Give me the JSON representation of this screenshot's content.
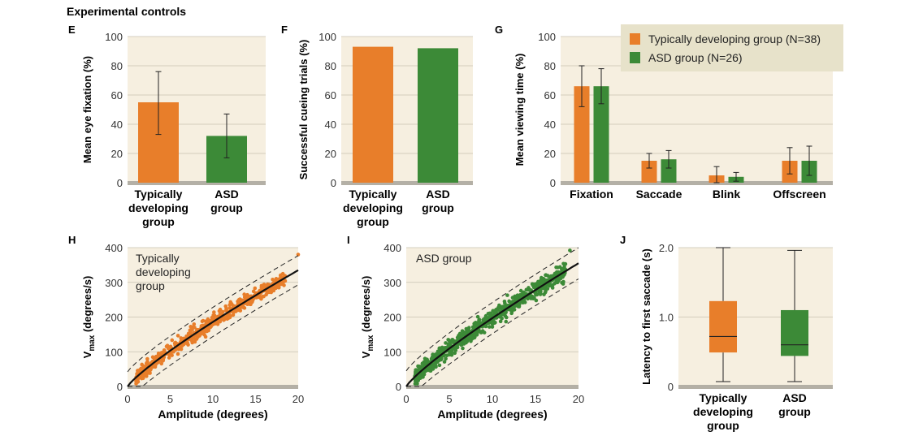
{
  "figure_title": "Experimental controls",
  "colors": {
    "td": "#e87e2a",
    "asd": "#3c8a37",
    "plot_bg": "#f6efe0",
    "legend_bg": "#e7e2ca",
    "grid": "#c8c2b2",
    "base": "#b4b0a6",
    "fit": "#111111"
  },
  "chart_data": [
    {
      "panel": "E",
      "type": "bar",
      "ylabel": "Mean eye fixation (%)",
      "ylim": [
        0,
        100
      ],
      "yticks": [
        "0",
        "20",
        "40",
        "60",
        "80",
        "100"
      ],
      "categories": [
        [
          "Typically",
          "developing",
          "group"
        ],
        [
          "ASD",
          "group"
        ]
      ],
      "values": [
        55,
        32
      ],
      "errors": [
        [
          33,
          76
        ],
        [
          17,
          47
        ]
      ]
    },
    {
      "panel": "F",
      "type": "bar",
      "ylabel": "Successful cueing trials (%)",
      "ylim": [
        0,
        100
      ],
      "yticks": [
        "0",
        "20",
        "40",
        "60",
        "80",
        "100"
      ],
      "categories": [
        [
          "Typically",
          "developing",
          "group"
        ],
        [
          "ASD",
          "group"
        ]
      ],
      "values": [
        93,
        92
      ]
    },
    {
      "panel": "G",
      "type": "bar",
      "ylabel": "Mean viewing time (%)",
      "ylim": [
        0,
        100
      ],
      "yticks": [
        "0",
        "20",
        "40",
        "60",
        "80",
        "100"
      ],
      "categories": [
        "Fixation",
        "Saccade",
        "Blink",
        "Offscreen"
      ],
      "series": [
        {
          "name": "Typically developing group (N=38)",
          "values": [
            66,
            15,
            5,
            15
          ],
          "errors": [
            [
              52,
              80
            ],
            [
              10,
              20
            ],
            [
              0,
              11
            ],
            [
              6,
              24
            ]
          ]
        },
        {
          "name": "ASD group (N=26)",
          "values": [
            66,
            16,
            4,
            15
          ],
          "errors": [
            [
              54,
              78
            ],
            [
              10,
              22
            ],
            [
              1,
              7
            ],
            [
              5,
              25
            ]
          ]
        }
      ],
      "legend": "top-right"
    },
    {
      "panel": "H",
      "type": "scatter",
      "annotation": [
        "Typically",
        "developing",
        "group"
      ],
      "xlabel": "Amplitude (degrees)",
      "ylabel_main": "V",
      "ylabel_sub": "max",
      "ylabel_rest": " (degrees/s)",
      "xlim": [
        0,
        20
      ],
      "ylim": [
        0,
        400
      ],
      "xticks": [
        "0",
        "5",
        "10",
        "15",
        "20"
      ],
      "yticks": [
        "0",
        "100",
        "200",
        "300",
        "400"
      ],
      "fit_end": 335,
      "band": 28,
      "n_points": 560,
      "max_point": [
        20,
        380
      ]
    },
    {
      "panel": "I",
      "type": "scatter",
      "annotation": [
        "ASD group"
      ],
      "xlabel": "Amplitude (degrees)",
      "ylabel_main": "V",
      "ylabel_sub": "max",
      "ylabel_rest": " (degrees/s)",
      "xlim": [
        0,
        20
      ],
      "ylim": [
        0,
        400
      ],
      "xticks": [
        "0",
        "5",
        "10",
        "15",
        "20"
      ],
      "yticks": [
        "0",
        "100",
        "200",
        "300",
        "400"
      ],
      "fit_end": 355,
      "band": 30,
      "n_points": 820,
      "max_point": [
        19,
        392
      ]
    },
    {
      "panel": "J",
      "type": "box",
      "ylabel": "Latency to first saccade (s)",
      "ylim": [
        0,
        2.0
      ],
      "yticks": [
        "0",
        "1.0",
        "2.0"
      ],
      "categories": [
        [
          "Typically",
          "developing",
          "group"
        ],
        [
          "ASD",
          "group"
        ]
      ],
      "boxes": [
        {
          "min": 0.07,
          "q1": 0.49,
          "median": 0.72,
          "q3": 1.23,
          "max": 2.0
        },
        {
          "min": 0.07,
          "q1": 0.44,
          "median": 0.6,
          "q3": 1.1,
          "max": 1.96
        }
      ]
    }
  ]
}
